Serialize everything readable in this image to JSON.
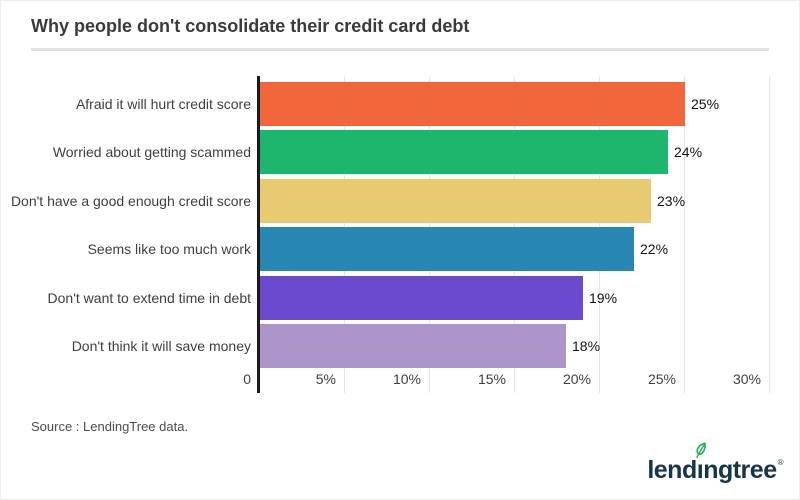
{
  "header": {
    "title": "Why people don't consolidate their credit card debt"
  },
  "chart_data": {
    "type": "bar",
    "orientation": "horizontal",
    "title": "Why people don't consolidate their credit card debt",
    "categories": [
      "Afraid it will hurt credit score",
      "Worried about getting scammed",
      "Don't have a good enough credit score",
      "Seems like too much work",
      "Don't want to extend time in debt",
      "Don't think it will save money"
    ],
    "values": [
      25,
      24,
      23,
      22,
      19,
      18
    ],
    "value_labels": [
      "25%",
      "24%",
      "23%",
      "22%",
      "19%",
      "18%"
    ],
    "bar_colors": [
      "#f2663c",
      "#1eb56c",
      "#e8ca70",
      "#2787b2",
      "#6b4ace",
      "#ab95c9"
    ],
    "xlim": [
      0,
      30
    ],
    "x_ticks": [
      0,
      5,
      10,
      15,
      20,
      25,
      30
    ],
    "x_tick_labels": [
      "0",
      "5%",
      "10%",
      "15%",
      "20%",
      "25%",
      "30%"
    ],
    "grid": true,
    "legend": "none",
    "gridline_color": "#e7e7e7",
    "axis_color": "#1a1a1a"
  },
  "footer": {
    "source_text": "Source : LendingTree data."
  },
  "logo": {
    "brand": "lendingtree",
    "text_pre": "lend",
    "text_dotless_i": "ı",
    "text_post": "ngtree",
    "trademark": "®",
    "leaf_color": "#2db35b",
    "text_color": "#16364c"
  }
}
